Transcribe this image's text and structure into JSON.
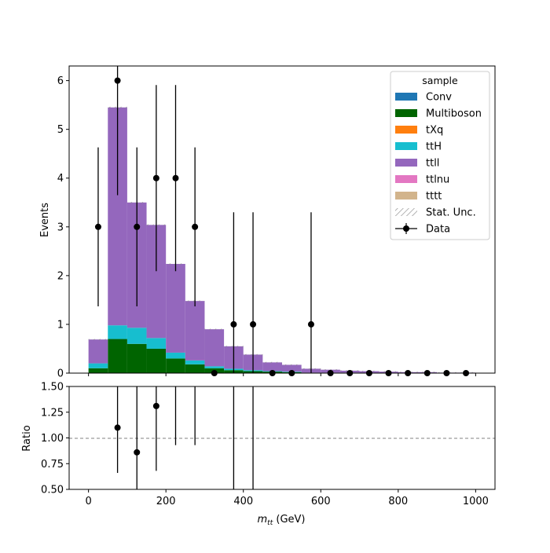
{
  "chart_data": [
    {
      "type": "bar",
      "stacked": true,
      "ylabel": "Events",
      "ylim": [
        0,
        6.3
      ],
      "xlim": [
        -50,
        1050
      ],
      "y_ticks": [
        0,
        1,
        2,
        3,
        4,
        5,
        6
      ],
      "bin_edges": [
        0,
        50,
        100,
        150,
        200,
        250,
        300,
        350,
        400,
        450,
        500,
        550,
        600,
        650,
        700,
        750,
        800,
        850,
        900,
        950,
        1000
      ],
      "series": [
        {
          "name": "Conv",
          "color": "#1f77b4",
          "values": [
            0,
            0,
            0,
            0,
            0,
            0,
            0,
            0,
            0,
            0,
            0,
            0,
            0,
            0,
            0,
            0,
            0,
            0,
            0,
            0
          ]
        },
        {
          "name": "Multiboson",
          "color": "#006400",
          "values": [
            0.1,
            0.7,
            0.6,
            0.5,
            0.3,
            0.18,
            0.1,
            0.06,
            0.04,
            0.03,
            0.02,
            0.01,
            0.01,
            0.01,
            0,
            0,
            0,
            0,
            0,
            0
          ]
        },
        {
          "name": "tXq",
          "color": "#ff7f0e",
          "values": [
            0,
            0,
            0,
            0,
            0,
            0,
            0,
            0,
            0,
            0,
            0,
            0,
            0,
            0,
            0,
            0,
            0,
            0,
            0,
            0
          ]
        },
        {
          "name": "ttH",
          "color": "#17becf",
          "values": [
            0.1,
            0.28,
            0.33,
            0.22,
            0.12,
            0.08,
            0.04,
            0.03,
            0.02,
            0.01,
            0.01,
            0,
            0,
            0,
            0,
            0,
            0,
            0,
            0,
            0
          ]
        },
        {
          "name": "ttll",
          "color": "#9467bd",
          "values": [
            0.49,
            4.47,
            2.57,
            2.32,
            1.82,
            1.22,
            0.76,
            0.46,
            0.32,
            0.18,
            0.14,
            0.08,
            0.06,
            0.04,
            0.04,
            0.03,
            0.02,
            0.02,
            0.01,
            0.01
          ]
        },
        {
          "name": "ttlnu",
          "color": "#e377c2",
          "values": [
            0,
            0,
            0,
            0,
            0,
            0,
            0,
            0,
            0,
            0,
            0,
            0,
            0,
            0,
            0,
            0,
            0,
            0,
            0,
            0
          ]
        },
        {
          "name": "tttt",
          "color": "#d2b48c",
          "values": [
            0,
            0,
            0,
            0,
            0,
            0,
            0,
            0,
            0,
            0,
            0,
            0,
            0,
            0,
            0,
            0,
            0,
            0,
            0,
            0
          ]
        }
      ],
      "data_points": {
        "name": "Data",
        "x": [
          25,
          75,
          125,
          175,
          225,
          275,
          325,
          375,
          425,
          475,
          525,
          575,
          625,
          675,
          725,
          775,
          825,
          875,
          925,
          975
        ],
        "y": [
          3,
          6,
          3,
          4,
          4,
          3,
          0,
          1,
          1,
          0,
          0,
          1,
          0,
          0,
          0,
          0,
          0,
          0,
          0,
          0
        ],
        "err": [
          1.63,
          2.35,
          1.63,
          1.91,
          1.91,
          1.63,
          0,
          2.3,
          2.3,
          0,
          0,
          2.3,
          0,
          0,
          0,
          0,
          0,
          0,
          0,
          0
        ]
      },
      "legend": {
        "title": "sample",
        "position": "top-right",
        "entries": [
          "Conv",
          "Multiboson",
          "tXq",
          "ttH",
          "ttll",
          "ttlnu",
          "tttt",
          "Stat. Unc.",
          "Data"
        ]
      }
    },
    {
      "type": "scatter",
      "ylabel": "Ratio",
      "xlabel": "m_tt (GeV)",
      "ylim": [
        0.5,
        1.5
      ],
      "xlim": [
        -50,
        1050
      ],
      "y_ticks": [
        "0.50",
        "0.75",
        "1.00",
        "1.25",
        "1.50"
      ],
      "x_ticks": [
        "0",
        "200",
        "400",
        "600",
        "800",
        "1000"
      ],
      "reference_line": 1.0,
      "points": [
        {
          "x": 75,
          "y": 1.1,
          "lo": 0.66,
          "hi": 1.53
        },
        {
          "x": 125,
          "y": 0.86,
          "lo": 0.4,
          "hi": 1.5
        },
        {
          "x": 175,
          "y": 1.31,
          "lo": 0.68,
          "hi": 1.5
        },
        {
          "x": 225,
          "y": null,
          "lo": 0.93,
          "hi": 1.5
        },
        {
          "x": 275,
          "y": null,
          "lo": 0.93,
          "hi": 1.5
        },
        {
          "x": 375,
          "y": null,
          "lo": 0.4,
          "hi": 1.5
        },
        {
          "x": 425,
          "y": null,
          "lo": 0.4,
          "hi": 1.5
        }
      ]
    }
  ]
}
